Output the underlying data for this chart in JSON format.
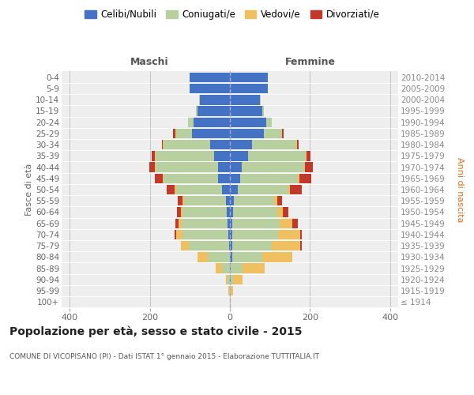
{
  "age_groups": [
    "100+",
    "95-99",
    "90-94",
    "85-89",
    "80-84",
    "75-79",
    "70-74",
    "65-69",
    "60-64",
    "55-59",
    "50-54",
    "45-49",
    "40-44",
    "35-39",
    "30-34",
    "25-29",
    "20-24",
    "15-19",
    "10-14",
    "5-9",
    "0-4"
  ],
  "birth_years": [
    "≤ 1914",
    "1915-1919",
    "1920-1924",
    "1925-1929",
    "1930-1934",
    "1935-1939",
    "1940-1944",
    "1945-1949",
    "1950-1954",
    "1955-1959",
    "1960-1964",
    "1965-1969",
    "1970-1974",
    "1975-1979",
    "1980-1984",
    "1985-1989",
    "1990-1994",
    "1995-1999",
    "2000-2004",
    "2005-2009",
    "2010-2014"
  ],
  "male": {
    "celibi": [
      0,
      0,
      0,
      0,
      0,
      2,
      4,
      5,
      8,
      10,
      20,
      30,
      30,
      40,
      50,
      95,
      90,
      80,
      75,
      100,
      100
    ],
    "coniugati": [
      0,
      2,
      5,
      20,
      55,
      100,
      115,
      115,
      110,
      105,
      115,
      135,
      155,
      145,
      115,
      40,
      15,
      5,
      2,
      0,
      0
    ],
    "vedovi": [
      0,
      2,
      5,
      15,
      25,
      20,
      15,
      8,
      5,
      3,
      3,
      2,
      2,
      2,
      2,
      2,
      0,
      0,
      0,
      0,
      0
    ],
    "divorziati": [
      0,
      0,
      0,
      0,
      0,
      0,
      5,
      8,
      10,
      12,
      20,
      20,
      15,
      8,
      3,
      5,
      0,
      0,
      0,
      0,
      0
    ]
  },
  "female": {
    "nubili": [
      0,
      0,
      2,
      2,
      5,
      5,
      5,
      5,
      8,
      10,
      20,
      25,
      30,
      45,
      55,
      85,
      90,
      80,
      75,
      95,
      95
    ],
    "coniugate": [
      0,
      2,
      5,
      30,
      75,
      100,
      115,
      120,
      110,
      100,
      125,
      145,
      155,
      145,
      110,
      45,
      15,
      5,
      2,
      0,
      0
    ],
    "vedove": [
      2,
      5,
      25,
      55,
      75,
      70,
      55,
      30,
      15,
      8,
      5,
      3,
      3,
      2,
      2,
      0,
      0,
      0,
      0,
      0,
      0
    ],
    "divorziate": [
      0,
      0,
      0,
      0,
      0,
      5,
      5,
      15,
      12,
      12,
      30,
      30,
      20,
      10,
      5,
      5,
      0,
      0,
      0,
      0,
      0
    ]
  },
  "colors": {
    "celibi_nubili": "#4472c4",
    "coniugati": "#b8cfa0",
    "vedovi": "#f0c060",
    "divorziati": "#c0392b"
  },
  "xlim": [
    -420,
    420
  ],
  "xticks": [
    -400,
    -200,
    0,
    200,
    400
  ],
  "xticklabels": [
    "400",
    "200",
    "0",
    "200",
    "400"
  ],
  "title": "Popolazione per età, sesso e stato civile - 2015",
  "subtitle": "COMUNE DI VICOPISANO (PI) - Dati ISTAT 1° gennaio 2015 - Elaborazione TUTTITALIA.IT",
  "ylabel_left": "Fasce di età",
  "ylabel_right": "Anni di nascita",
  "label_maschi": "Maschi",
  "label_femmine": "Femmine",
  "legend_labels": [
    "Celibi/Nubili",
    "Coniugati/e",
    "Vedovi/e",
    "Divorziati/e"
  ],
  "background_color": "#eeeeee",
  "grid_color": "#cccccc"
}
